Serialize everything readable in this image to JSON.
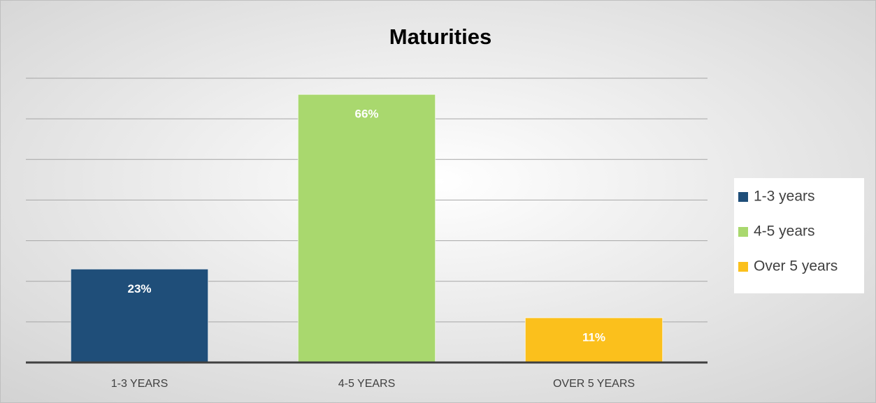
{
  "chart_data": {
    "type": "bar",
    "title": "Maturities",
    "categories": [
      "1-3 YEARS",
      "4-5 YEARS",
      "OVER 5 YEARS"
    ],
    "values": [
      23,
      66,
      11
    ],
    "value_labels": [
      "23%",
      "66%",
      "11%"
    ],
    "colors": [
      "#1f4e79",
      "#a9d86e",
      "#fbc01c"
    ],
    "legend": [
      "1-3 years",
      "4-5 years",
      "Over 5 years"
    ],
    "ylim": [
      0,
      70
    ],
    "yticks": [
      0,
      10,
      20,
      30,
      40,
      50,
      60,
      70
    ],
    "grid": true
  }
}
